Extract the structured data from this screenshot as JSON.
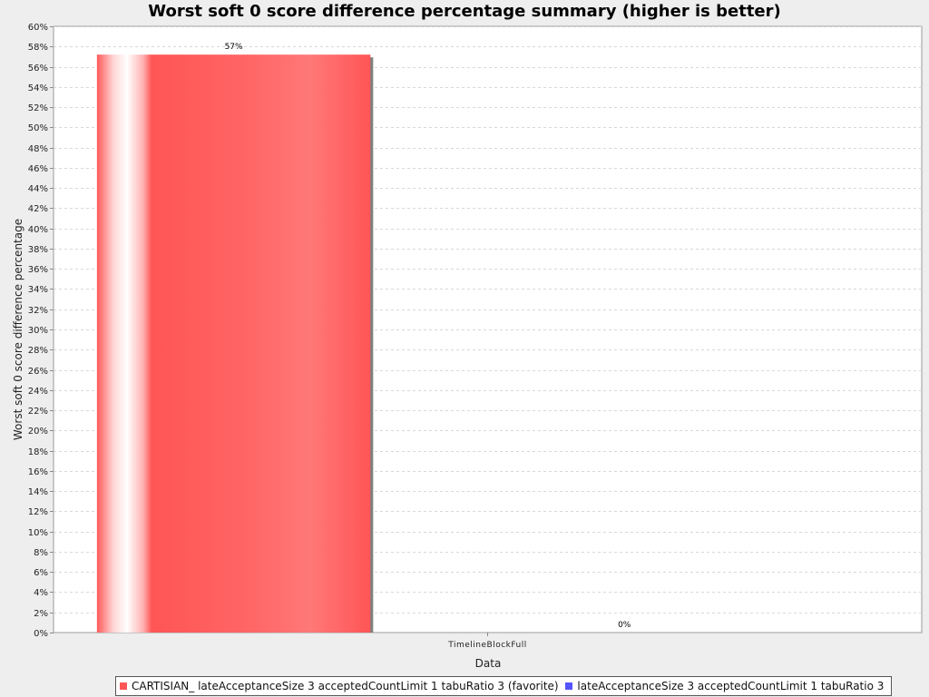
{
  "chart_data": {
    "type": "bar",
    "title": "Worst soft 0 score difference percentage summary (higher is better)",
    "xlabel": "Data",
    "ylabel": "Worst soft 0 score difference percentage",
    "categories": [
      "TimelineBlockFull"
    ],
    "ylim": [
      0,
      60
    ],
    "y_tick_step": 2,
    "y_tick_suffix": "%",
    "grid": true,
    "legend_position": "bottom",
    "series": [
      {
        "name": "CARTISIAN_ lateAcceptanceSize 3 acceptedCountLimit 1 tabuRatio 3 (favorite)",
        "values": [
          57.2
        ],
        "value_labels": [
          "57%"
        ],
        "color": "#ff5555"
      },
      {
        "name": "lateAcceptanceSize 3 acceptedCountLimit 1 tabuRatio 3",
        "values": [
          0
        ],
        "value_labels": [
          "0%"
        ],
        "color": "#5555ff"
      }
    ]
  }
}
